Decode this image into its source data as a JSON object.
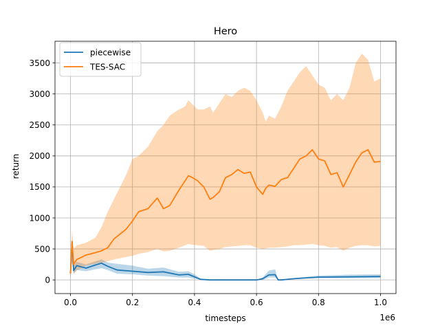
{
  "chart_data": {
    "type": "line",
    "title": "Hero",
    "xlabel": "timesteps",
    "ylabel": "return",
    "x_offset_label": "1e6",
    "xlim": [
      -0.05,
      1.05
    ],
    "ylim": [
      -220,
      3850
    ],
    "xticks": [
      0.0,
      0.2,
      0.4,
      0.6,
      0.8,
      1.0
    ],
    "xtick_labels": [
      "0.0",
      "0.2",
      "0.4",
      "0.6",
      "0.8",
      "1.0"
    ],
    "yticks": [
      0,
      500,
      1000,
      1500,
      2000,
      2500,
      3000,
      3500
    ],
    "ytick_labels": [
      "0",
      "500",
      "1000",
      "1500",
      "2000",
      "2500",
      "3000",
      "3500"
    ],
    "grid": true,
    "legend_position": "top-left",
    "series": [
      {
        "name": "piecewise",
        "color": "#1f77b4",
        "x": [
          0.0,
          0.005,
          0.01,
          0.02,
          0.05,
          0.08,
          0.1,
          0.12,
          0.15,
          0.2,
          0.25,
          0.3,
          0.35,
          0.38,
          0.4,
          0.42,
          0.45,
          0.5,
          0.55,
          0.6,
          0.62,
          0.64,
          0.66,
          0.67,
          0.68,
          0.72,
          0.75,
          0.8,
          0.9,
          1.0
        ],
        "y": [
          100,
          620,
          150,
          230,
          190,
          240,
          270,
          220,
          160,
          140,
          120,
          130,
          80,
          90,
          50,
          10,
          0,
          0,
          0,
          0,
          20,
          80,
          85,
          0,
          0,
          20,
          30,
          45,
          50,
          55
        ],
        "lower": [
          50,
          300,
          100,
          160,
          140,
          170,
          190,
          160,
          100,
          90,
          70,
          60,
          40,
          40,
          20,
          0,
          0,
          0,
          0,
          0,
          0,
          40,
          40,
          0,
          0,
          10,
          20,
          30,
          30,
          30
        ],
        "upper": [
          200,
          650,
          230,
          290,
          250,
          300,
          330,
          280,
          260,
          230,
          180,
          200,
          130,
          140,
          90,
          20,
          0,
          0,
          0,
          0,
          40,
          150,
          170,
          0,
          0,
          30,
          45,
          70,
          85,
          90
        ]
      },
      {
        "name": "TES-SAC",
        "color": "#ff7f0e",
        "x": [
          0.0,
          0.005,
          0.01,
          0.02,
          0.05,
          0.08,
          0.1,
          0.12,
          0.14,
          0.16,
          0.18,
          0.2,
          0.22,
          0.25,
          0.28,
          0.3,
          0.32,
          0.35,
          0.37,
          0.38,
          0.39,
          0.41,
          0.43,
          0.45,
          0.46,
          0.48,
          0.5,
          0.52,
          0.54,
          0.56,
          0.58,
          0.6,
          0.62,
          0.63,
          0.64,
          0.66,
          0.68,
          0.7,
          0.72,
          0.74,
          0.76,
          0.78,
          0.8,
          0.82,
          0.84,
          0.86,
          0.88,
          0.9,
          0.92,
          0.94,
          0.96,
          0.98,
          1.0
        ],
        "y": [
          100,
          620,
          250,
          330,
          400,
          440,
          470,
          520,
          660,
          740,
          820,
          950,
          1100,
          1150,
          1320,
          1150,
          1200,
          1450,
          1600,
          1680,
          1660,
          1600,
          1500,
          1300,
          1330,
          1420,
          1650,
          1700,
          1780,
          1720,
          1740,
          1500,
          1380,
          1480,
          1530,
          1510,
          1620,
          1650,
          1800,
          1950,
          2000,
          2100,
          1950,
          1920,
          1700,
          1730,
          1500,
          1700,
          1900,
          2050,
          2100,
          1900,
          1910
        ],
        "lower": [
          50,
          300,
          100,
          150,
          230,
          260,
          280,
          300,
          330,
          350,
          370,
          390,
          420,
          450,
          500,
          460,
          470,
          520,
          560,
          580,
          570,
          560,
          550,
          470,
          480,
          500,
          530,
          540,
          550,
          560,
          560,
          520,
          500,
          510,
          520,
          520,
          530,
          540,
          560,
          560,
          570,
          580,
          560,
          550,
          520,
          530,
          470,
          520,
          550,
          560,
          560,
          540,
          550
        ],
        "upper": [
          200,
          800,
          500,
          560,
          600,
          680,
          850,
          1100,
          1300,
          1500,
          1700,
          1950,
          2000,
          2150,
          2400,
          2500,
          2650,
          2750,
          2800,
          2900,
          2850,
          2750,
          2750,
          2800,
          2700,
          2850,
          3000,
          2950,
          3050,
          3100,
          3050,
          2900,
          2700,
          2550,
          2650,
          2600,
          2800,
          3050,
          3200,
          3350,
          3450,
          3300,
          3150,
          3100,
          2900,
          3000,
          2900,
          3100,
          3500,
          3650,
          3550,
          3200,
          3250
        ]
      }
    ]
  }
}
